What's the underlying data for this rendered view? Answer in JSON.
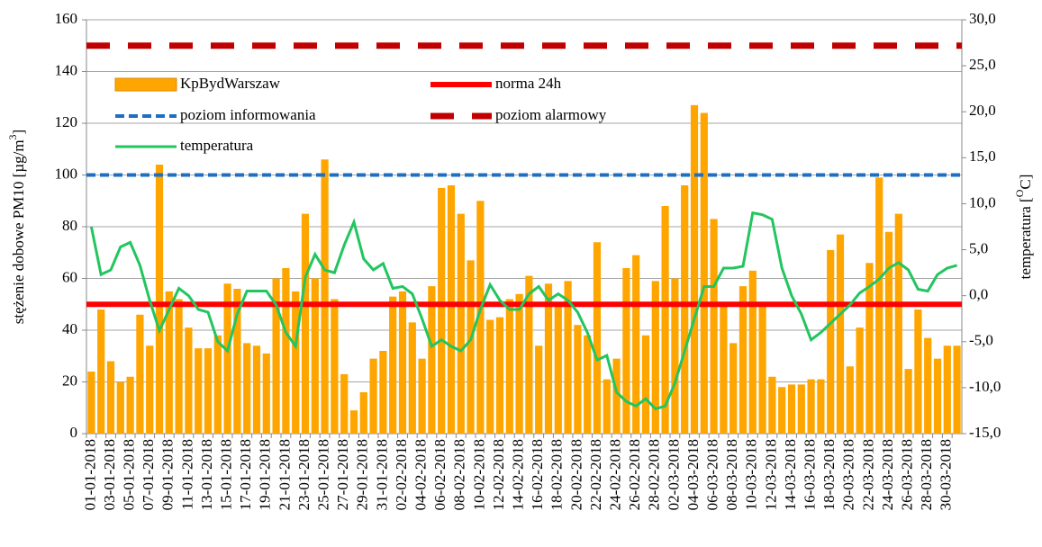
{
  "chart_data": {
    "type": "bar",
    "y_label_parts": [
      "stężenie dobowe PM10 [µg/m",
      "3",
      "]"
    ],
    "y2_label_parts": [
      "temperatura [",
      "O",
      "C]"
    ],
    "categories": [
      "01-01-2018",
      null,
      "03-01-2018",
      null,
      "05-01-2018",
      null,
      "07-01-2018",
      null,
      "09-01-2018",
      null,
      "11-01-2018",
      null,
      "13-01-2018",
      null,
      "15-01-2018",
      null,
      "17-01-2018",
      null,
      "19-01-2018",
      null,
      "21-01-2018",
      null,
      "23-01-2018",
      null,
      "25-01-2018",
      null,
      "27-01-2018",
      null,
      "29-01-2018",
      null,
      "31-01-2018",
      null,
      "02-02-2018",
      null,
      "04-02-2018",
      null,
      "06-02-2018",
      null,
      "08-02-2018",
      null,
      "10-02-2018",
      null,
      "12-02-2018",
      null,
      "14-02-2018",
      null,
      "16-02-2018",
      null,
      "18-02-2018",
      null,
      "20-02-2018",
      null,
      "22-02-2018",
      null,
      "24-02-2018",
      null,
      "26-02-2018",
      null,
      "28-02-2018",
      null,
      "02-03-2018",
      null,
      "04-03-2018",
      null,
      "06-03-2018",
      null,
      "08-03-2018",
      null,
      "10-03-2018",
      null,
      "12-03-2018",
      null,
      "14-03-2018",
      null,
      "16-03-2018",
      null,
      "18-03-2018",
      null,
      "20-03-2018",
      null,
      "22-03-2018",
      null,
      "24-03-2018",
      null,
      "26-03-2018",
      null,
      "28-03-2018",
      null,
      "30-03-2018",
      null
    ],
    "series": [
      {
        "name": "KpBydWarszaw",
        "color": "#ffa500",
        "values": [
          24,
          48,
          28,
          20,
          22,
          46,
          34,
          104,
          55,
          52,
          41,
          33,
          33,
          38,
          58,
          56,
          35,
          34,
          31,
          60,
          64,
          55,
          85,
          60,
          106,
          52,
          23,
          9,
          16,
          29,
          32,
          53,
          55,
          43,
          29,
          57,
          95,
          96,
          85,
          67,
          90,
          44,
          45,
          52,
          54,
          61,
          34,
          58,
          50,
          59,
          42,
          38,
          74,
          21,
          29,
          64,
          69,
          38,
          59,
          88,
          60,
          96,
          127,
          124,
          83,
          50,
          35,
          57,
          63,
          50,
          22,
          18,
          19,
          19,
          21,
          21,
          71,
          77,
          26,
          41,
          66,
          99,
          78,
          85,
          25,
          48,
          37,
          29,
          34,
          34
        ]
      },
      {
        "name": "temperatura",
        "color": "#22c55e",
        "axis": "y2",
        "values": [
          7.5,
          2.3,
          2.8,
          5.3,
          5.8,
          3.3,
          -0.5,
          -3.8,
          -1.5,
          0.8,
          0,
          -1.5,
          -1.8,
          -5,
          -6,
          -2,
          0.5,
          0.5,
          0.5,
          -1,
          -4,
          -5.5,
          2,
          4.5,
          2.8,
          2.5,
          5.5,
          8,
          4,
          2.8,
          3.5,
          0.8,
          1,
          0.2,
          -2.5,
          -5.5,
          -4.8,
          -5.5,
          -6,
          -4.8,
          -1.5,
          1.2,
          -0.5,
          -1.5,
          -1.5,
          0.2,
          1,
          -0.5,
          0.2,
          -0.5,
          -1.8,
          -4,
          -7,
          -6.5,
          -10.5,
          -11.5,
          -12,
          -11.2,
          -12.3,
          -12,
          -9.5,
          -6,
          -2.5,
          1,
          1,
          3,
          3,
          3.2,
          9,
          8.8,
          8.3,
          3,
          0,
          -2,
          -4.8,
          -4,
          -3,
          -2,
          -1,
          0.3,
          1,
          1.8,
          3,
          3.6,
          2.8,
          0.7,
          0.5,
          2.3,
          3,
          3.3
        ]
      }
    ],
    "reference_lines": [
      {
        "name": "norma 24h",
        "value": 50,
        "color": "#ff0000",
        "style": "solid"
      },
      {
        "name": "poziom informowania",
        "value": 100,
        "color": "#1f6fc0",
        "style": "dashed"
      },
      {
        "name": "poziom alarmowy",
        "value": 150,
        "color": "#c00000",
        "style": "dashed-thick"
      }
    ],
    "ylim": [
      0,
      160
    ],
    "yticks": [
      0,
      20,
      40,
      60,
      80,
      100,
      120,
      140,
      160
    ],
    "y2lim": [
      -15,
      30
    ],
    "y2ticks": [
      {
        "value": -15,
        "label": "-15,0"
      },
      {
        "value": -10,
        "label": "-10,0"
      },
      {
        "value": -5,
        "label": "-5,0"
      },
      {
        "value": 0,
        "label": "0,0"
      },
      {
        "value": 5,
        "label": "5,0"
      },
      {
        "value": 10,
        "label": "10,0"
      },
      {
        "value": 15,
        "label": "15,0"
      },
      {
        "value": 20,
        "label": "20,0"
      },
      {
        "value": 25,
        "label": "25,0"
      },
      {
        "value": 30,
        "label": "30,0"
      }
    ],
    "grid": true
  }
}
